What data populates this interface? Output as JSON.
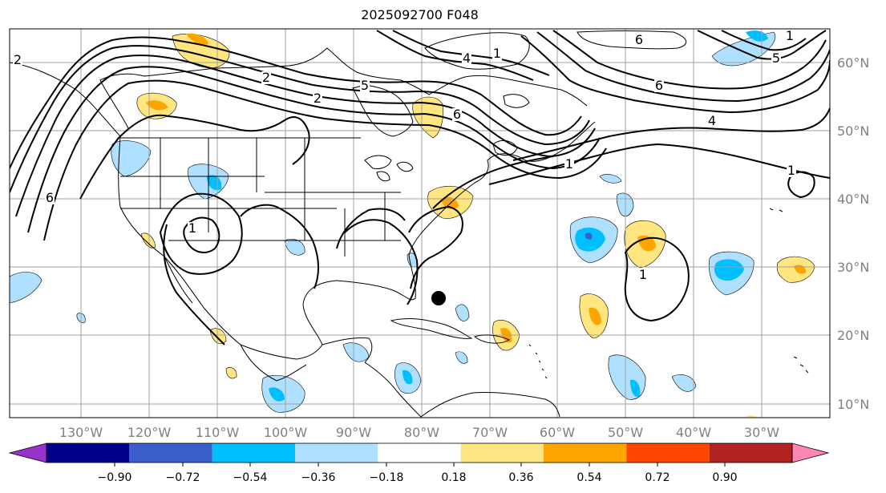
{
  "title": "2025092700 F048",
  "map": {
    "lon_range": [
      -140,
      -28
    ],
    "lat_range": [
      8,
      65
    ],
    "lon_ticks": [
      "130°W",
      "120°W",
      "110°W",
      "100°W",
      "90°W",
      "80°W",
      "70°W",
      "60°W",
      "50°W",
      "40°W",
      "30°W"
    ],
    "lat_ticks": [
      "60°N",
      "50°N",
      "40°N",
      "30°N",
      "20°N",
      "10°N"
    ],
    "grid": true,
    "contour_labels": [
      "6",
      "2",
      "5",
      "6",
      "4",
      "6",
      "2",
      "1",
      "5",
      "6",
      "4",
      "1",
      "6",
      "1",
      "1",
      "1",
      "1",
      "2"
    ],
    "storm_marker": "storm-position-dot"
  },
  "colorbar": {
    "ticks": [
      "−0.90",
      "−0.72",
      "−0.54",
      "−0.36",
      "−0.18",
      "0.18",
      "0.36",
      "0.54",
      "0.72",
      "0.90"
    ],
    "colors": [
      "#9932cc",
      "#00008b",
      "#3a5fcd",
      "#00bfff",
      "#b0e0ff",
      "#ffffff",
      "#ffe680",
      "#ffa500",
      "#ff4500",
      "#b22222",
      "#ff85b5"
    ]
  }
}
